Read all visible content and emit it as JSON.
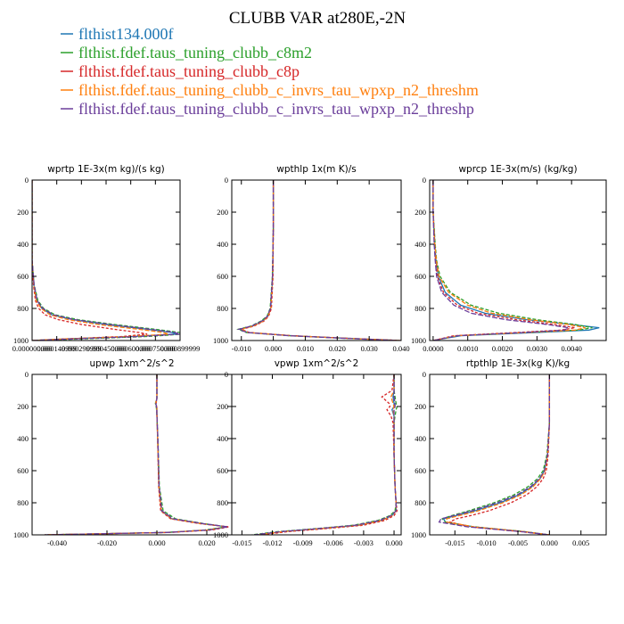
{
  "title": "CLUBB VAR at280E,-2N",
  "legend": [
    {
      "label": "flthist134.000f",
      "color": "#1f77b4"
    },
    {
      "label": "flthist.fdef.taus_tuning_clubb_c8m2",
      "color": "#2ca02c"
    },
    {
      "label": "flthist.fdef.taus_tuning_clubb_c8p",
      "color": "#d62728"
    },
    {
      "label": "flthist.fdef.taus_tuning_clubb_c_invrs_tau_wpxp_n2_threshm",
      "color": "#ff7f0e"
    },
    {
      "label": "flthist.fdef.taus_tuning_clubb_c_invrs_tau_wpxp_n2_threshp",
      "color": "#6a3d9a"
    }
  ],
  "chart_data": [
    {
      "type": "line",
      "title": "wprtp  1E-3x(m kg)/(s kg)",
      "xlim": [
        0.0,
        0.0009
      ],
      "ylim": [
        1000,
        0
      ],
      "y_ticks": [
        0,
        200,
        400,
        600,
        800,
        1000
      ],
      "x_ticks": [
        0.0,
        0.00015,
        0.0003,
        0.00045,
        0.0006,
        0.00075,
        0.0009
      ],
      "x_tick_labels": [
        "0.000000000",
        "0.000149999",
        "0.000299999",
        "0.000450000",
        "0.000600000",
        "0.000750000",
        "0.000899999"
      ],
      "y": [
        0,
        200,
        500,
        650,
        750,
        800,
        840,
        870,
        900,
        930,
        950,
        960,
        975,
        990,
        1000
      ],
      "series": [
        {
          "values": [
            0.0,
            0.0,
            0.0,
            1e-05,
            3e-05,
            6e-05,
            0.00012,
            0.00025,
            0.00045,
            0.0007,
            0.00085,
            0.00088,
            0.0006,
            0.0002,
            0.0
          ]
        },
        {
          "values": [
            0.0,
            0.0,
            0.0,
            1.2e-05,
            3.5e-05,
            7e-05,
            0.00014,
            0.00028,
            0.0005,
            0.00075,
            0.0009,
            0.00092,
            0.0007,
            0.0003,
            0.0
          ]
        },
        {
          "values": [
            0.0,
            0.0,
            0.0,
            8e-06,
            2e-05,
            4e-05,
            8e-05,
            0.00016,
            0.0003,
            0.0005,
            0.00065,
            0.0007,
            0.00055,
            0.0002,
            0.0
          ]
        },
        {
          "values": [
            0.0,
            0.0,
            0.0,
            1e-05,
            2.5e-05,
            5.5e-05,
            0.00011,
            0.00022,
            0.0004,
            0.00065,
            0.0008,
            0.00083,
            0.0006,
            0.0002,
            0.0
          ]
        },
        {
          "values": [
            0.0,
            0.0,
            0.0,
            1.2e-05,
            3e-05,
            6.5e-05,
            0.00013,
            0.00026,
            0.00047,
            0.00072,
            0.00087,
            0.0009,
            0.00065,
            0.00025,
            0.0
          ]
        }
      ]
    },
    {
      "type": "line",
      "title": "wpthlp  1x(m K)/s",
      "xlim": [
        -0.013,
        0.04
      ],
      "ylim": [
        1000,
        0
      ],
      "y_ticks": [
        0,
        200,
        400,
        600,
        800,
        1000
      ],
      "x_ticks": [
        -0.01,
        0.0,
        0.01,
        0.02,
        0.03,
        0.04
      ],
      "x_tick_labels": [
        "-0.010",
        "0.000",
        "0.010",
        "0.020",
        "0.030",
        "0.040"
      ],
      "y": [
        0,
        100,
        300,
        600,
        800,
        850,
        880,
        910,
        930,
        950,
        970,
        985,
        1000
      ],
      "series": [
        {
          "values": [
            0.0,
            0.0,
            0.0,
            -0.0002,
            -0.0008,
            -0.0018,
            -0.0035,
            -0.0065,
            -0.0105,
            -0.008,
            0.006,
            0.022,
            0.04
          ]
        },
        {
          "values": [
            0.0,
            0.0,
            0.0,
            -0.0003,
            -0.001,
            -0.002,
            -0.004,
            -0.007,
            -0.011,
            -0.0085,
            0.005,
            0.021,
            0.039
          ]
        },
        {
          "values": [
            0.0,
            0.0,
            0.0,
            -0.0001,
            -0.0006,
            -0.0015,
            -0.003,
            -0.006,
            -0.01,
            -0.0075,
            0.006,
            0.022,
            0.04
          ]
        },
        {
          "values": [
            0.0,
            0.0,
            0.0,
            -0.0002,
            -0.0008,
            -0.0017,
            -0.0033,
            -0.0063,
            -0.0102,
            -0.0078,
            0.0055,
            0.0215,
            0.0395
          ]
        },
        {
          "values": [
            0.0,
            0.0,
            0.0,
            -0.00025,
            -0.0009,
            -0.0019,
            -0.0037,
            -0.0068,
            -0.0108,
            -0.0082,
            0.005,
            0.021,
            0.039
          ]
        }
      ]
    },
    {
      "type": "line",
      "title": "wprcp  1E-3x(m/s) (kg/kg)",
      "xlim": [
        -0.0001,
        0.005
      ],
      "ylim": [
        1000,
        0
      ],
      "y_ticks": [
        0,
        200,
        400,
        600,
        800,
        1000
      ],
      "x_ticks": [
        0.0,
        0.001,
        0.002,
        0.003,
        0.004
      ],
      "x_tick_labels": [
        "0.0000",
        "0.0010",
        "0.0020",
        "0.0030",
        "0.0040"
      ],
      "y": [
        0,
        200,
        400,
        500,
        600,
        700,
        780,
        830,
        870,
        900,
        920,
        935,
        950,
        970,
        1000
      ],
      "series": [
        {
          "values": [
            0.0,
            0.0,
            5e-05,
            8e-05,
            0.00015,
            0.00035,
            0.0008,
            0.0015,
            0.0027,
            0.004,
            0.0048,
            0.0045,
            0.003,
            0.0008,
            0.0
          ]
        },
        {
          "values": [
            0.0,
            0.0,
            6e-05,
            0.0001,
            0.0002,
            0.0005,
            0.0011,
            0.0019,
            0.003,
            0.0041,
            0.0046,
            0.0042,
            0.0027,
            0.0007,
            0.0
          ]
        },
        {
          "values": [
            0.0,
            0.0,
            4e-05,
            7e-05,
            0.00012,
            0.0003,
            0.0007,
            0.0013,
            0.0024,
            0.0035,
            0.0041,
            0.0037,
            0.0024,
            0.0006,
            0.0
          ]
        },
        {
          "values": [
            0.0,
            0.0,
            5e-05,
            9e-05,
            0.00017,
            0.00045,
            0.001,
            0.0017,
            0.0028,
            0.0039,
            0.0044,
            0.0041,
            0.0027,
            0.0007,
            0.0
          ]
        },
        {
          "values": [
            0.0,
            0.0,
            3e-05,
            6e-05,
            0.0001,
            0.00025,
            0.0006,
            0.0011,
            0.0021,
            0.0033,
            0.0039,
            0.0038,
            0.0026,
            0.0007,
            0.0
          ]
        }
      ]
    },
    {
      "type": "line",
      "title": "upwp  1xm^2/s^2",
      "xlim": [
        -0.05,
        0.03
      ],
      "ylim": [
        1000,
        0
      ],
      "y_ticks": [
        0,
        200,
        400,
        600,
        800,
        1000
      ],
      "x_ticks": [
        -0.04,
        -0.02,
        0.0,
        0.02
      ],
      "x_tick_labels": [
        "-0.040",
        "-0.020",
        "0.000",
        "0.020"
      ],
      "y": [
        0,
        150,
        180,
        210,
        250,
        400,
        700,
        850,
        900,
        930,
        950,
        970,
        985,
        1000
      ],
      "series": [
        {
          "values": [
            0.0,
            0.0,
            -0.0005,
            0.0,
            0.0,
            0.0003,
            0.0008,
            0.0018,
            0.006,
            0.018,
            0.028,
            0.02,
            0.004,
            -0.045
          ]
        },
        {
          "values": [
            0.0,
            0.0,
            -0.0006,
            -0.0002,
            0.0,
            0.0004,
            0.001,
            0.0025,
            0.0075,
            0.019,
            0.028,
            0.019,
            0.0035,
            -0.045
          ]
        },
        {
          "values": [
            0.0,
            0.0,
            -0.0003,
            0.0,
            0.0,
            0.0003,
            0.0007,
            0.0015,
            0.0055,
            0.017,
            0.029,
            0.022,
            0.005,
            -0.045
          ]
        },
        {
          "values": [
            0.0,
            0.0,
            -0.0005,
            0.0,
            0.0,
            0.0003,
            0.0008,
            0.0018,
            0.006,
            0.018,
            0.028,
            0.02,
            0.004,
            -0.045
          ]
        },
        {
          "values": [
            0.0,
            0.0,
            -0.0004,
            -0.0001,
            0.0,
            0.0004,
            0.0009,
            0.002,
            0.0065,
            0.0185,
            0.0285,
            0.0205,
            0.004,
            -0.045
          ]
        }
      ]
    },
    {
      "type": "line",
      "title": "vpwp  1xm^2/s^2",
      "xlim": [
        -0.016,
        0.0007
      ],
      "ylim": [
        1000,
        0
      ],
      "y_ticks": [
        0,
        200,
        400,
        600,
        800,
        1000
      ],
      "x_ticks": [
        -0.015,
        -0.012,
        -0.009,
        -0.006,
        -0.003,
        0.0
      ],
      "x_tick_labels": [
        "-0.015",
        "-0.012",
        "-0.009",
        "-0.006",
        "-0.003",
        "0.000"
      ],
      "y": [
        0,
        100,
        140,
        180,
        200,
        220,
        260,
        300,
        500,
        700,
        800,
        850,
        880,
        910,
        940,
        960,
        980,
        1000
      ],
      "series": [
        {
          "values": [
            0.0,
            0.0,
            -0.0001,
            0.0,
            0.0,
            -0.0002,
            0.0,
            0.0,
            0.0,
            0.0001,
            0.0002,
            0.0002,
            -0.0002,
            -0.0012,
            -0.0035,
            -0.007,
            -0.011,
            -0.0135
          ]
        },
        {
          "values": [
            0.0,
            0.0,
            0.0001,
            0.0002,
            0.0003,
            0.0002,
            0.0001,
            0.0,
            0.0,
            0.0001,
            0.0002,
            0.0001,
            -0.0004,
            -0.0016,
            -0.004,
            -0.0075,
            -0.0115,
            -0.014
          ]
        },
        {
          "values": [
            0.0,
            -0.0002,
            -0.0012,
            -0.0005,
            -0.0004,
            -0.0007,
            -0.0003,
            -0.0001,
            0.0,
            0.0001,
            0.0002,
            0.0003,
            0.0,
            -0.0009,
            -0.003,
            -0.0065,
            -0.0105,
            -0.013
          ]
        },
        {
          "values": [
            0.0,
            0.0,
            -0.0003,
            -0.0001,
            0.0,
            -0.0001,
            0.0,
            0.0,
            0.0,
            0.0001,
            0.0002,
            0.0002,
            -0.0002,
            -0.0012,
            -0.0035,
            -0.007,
            -0.011,
            -0.0135
          ]
        },
        {
          "values": [
            0.0,
            0.0,
            0.0,
            0.0001,
            0.0001,
            0.0,
            0.0,
            0.0,
            0.0,
            0.0001,
            0.0002,
            0.0002,
            -0.0003,
            -0.0014,
            -0.0038,
            -0.0073,
            -0.0112,
            -0.0138
          ]
        }
      ]
    },
    {
      "type": "line",
      "title": "rtpthlp  1E-3x(kg K)/kg",
      "xlim": [
        -0.019,
        0.009
      ],
      "ylim": [
        1000,
        0
      ],
      "y_ticks": [
        0,
        200,
        400,
        600,
        800,
        1000
      ],
      "x_ticks": [
        -0.015,
        -0.01,
        -0.005,
        0.0,
        0.005
      ],
      "x_tick_labels": [
        "-0.015",
        "-0.010",
        "-0.005",
        "0.000",
        "0.005"
      ],
      "y": [
        0,
        300,
        500,
        600,
        650,
        700,
        750,
        800,
        850,
        880,
        900,
        920,
        950,
        980,
        1000
      ],
      "series": [
        {
          "values": [
            0.0,
            0.0,
            -0.0003,
            -0.0008,
            -0.0015,
            -0.0028,
            -0.0048,
            -0.0078,
            -0.0118,
            -0.0148,
            -0.0168,
            -0.0165,
            -0.012,
            -0.004,
            0.0
          ]
        },
        {
          "values": [
            0.0,
            0.0,
            -0.0004,
            -0.001,
            -0.0019,
            -0.0034,
            -0.0056,
            -0.0088,
            -0.0128,
            -0.0155,
            -0.017,
            -0.0165,
            -0.012,
            -0.004,
            0.0
          ]
        },
        {
          "values": [
            0.0,
            0.0,
            -0.0002,
            -0.0005,
            -0.001,
            -0.002,
            -0.0036,
            -0.0061,
            -0.0096,
            -0.0125,
            -0.0148,
            -0.0158,
            -0.0125,
            -0.0045,
            0.0
          ]
        },
        {
          "values": [
            0.0,
            0.0,
            -0.0003,
            -0.0007,
            -0.0014,
            -0.0026,
            -0.0045,
            -0.0074,
            -0.0113,
            -0.0143,
            -0.0163,
            -0.0163,
            -0.012,
            -0.004,
            0.0
          ]
        },
        {
          "values": [
            0.0,
            0.0,
            -0.0003,
            -0.0008,
            -0.0016,
            -0.003,
            -0.0051,
            -0.0083,
            -0.0123,
            -0.0152,
            -0.0172,
            -0.0175,
            -0.013,
            -0.0045,
            0.0
          ]
        }
      ]
    }
  ]
}
